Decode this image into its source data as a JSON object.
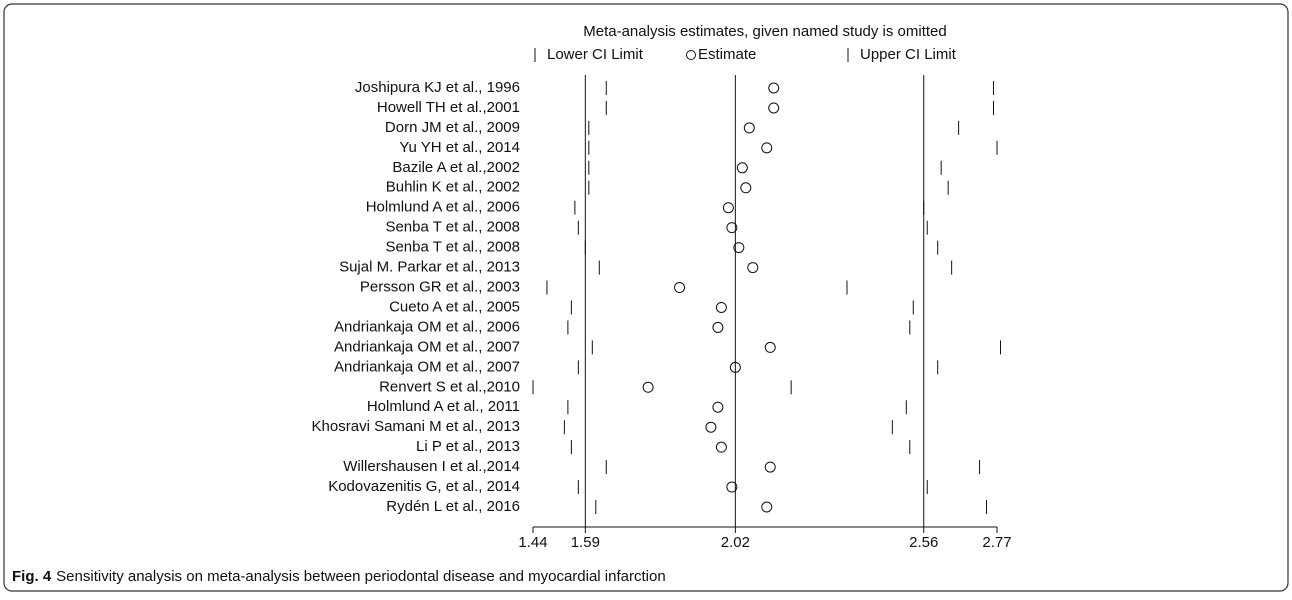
{
  "chart_data": {
    "type": "sensitivity",
    "title": "Meta-analysis estimates, given named study is omitted",
    "categories": [
      "Joshipura KJ et al., 1996",
      "Howell TH et al.,2001",
      "Dorn JM et al., 2009",
      "Yu YH et al., 2014",
      "Bazile A et al.,2002",
      "Buhlin K et al., 2002",
      "Holmlund A et al., 2006",
      "Senba T et al., 2008",
      "Senba T et al., 2008",
      "Sujal M. Parkar et al., 2013",
      "Persson GR et al., 2003",
      "Cueto A et al., 2005",
      "Andriankaja OM et al., 2006",
      "Andriankaja OM et al., 2007",
      "Andriankaja OM et al., 2007",
      "Renvert S et al.,2010",
      "Holmlund A et al., 2011",
      "Khosravi Samani M et al., 2013",
      "Li P et al., 2013",
      "Willershausen I et al.,2014",
      "Kodovazenitis G, et al., 2014",
      "Rydén L et al., 2016"
    ],
    "series": [
      {
        "name": "Lower CI Limit",
        "color": "#111111",
        "values": [
          1.65,
          1.65,
          1.6,
          1.6,
          1.6,
          1.6,
          1.56,
          1.57,
          1.59,
          1.63,
          1.48,
          1.55,
          1.54,
          1.61,
          1.57,
          1.44,
          1.54,
          1.53,
          1.55,
          1.65,
          1.57,
          1.62
        ]
      },
      {
        "name": "Estimate",
        "color": "#111111",
        "values": [
          2.13,
          2.13,
          2.06,
          2.11,
          2.04,
          2.05,
          2.0,
          2.01,
          2.03,
          2.07,
          1.86,
          1.98,
          1.97,
          2.12,
          2.02,
          1.77,
          1.97,
          1.95,
          1.98,
          2.12,
          2.01,
          2.11
        ]
      },
      {
        "name": "Upper CI Limit",
        "color": "#111111",
        "values": [
          2.76,
          2.76,
          2.66,
          2.77,
          2.61,
          2.63,
          2.56,
          2.57,
          2.6,
          2.64,
          2.34,
          2.53,
          2.52,
          2.78,
          2.6,
          2.18,
          2.51,
          2.47,
          2.52,
          2.72,
          2.57,
          2.74
        ]
      }
    ],
    "xlim": [
      1.44,
      2.77
    ],
    "xticks": [
      1.44,
      1.59,
      2.02,
      2.56,
      2.77
    ],
    "reference_lines": [
      1.59,
      2.02,
      2.56
    ]
  },
  "figure": {
    "label": "Fig. 4",
    "caption": "Sensitivity analysis on meta-analysis between periodontal disease and myocardial infarction"
  }
}
